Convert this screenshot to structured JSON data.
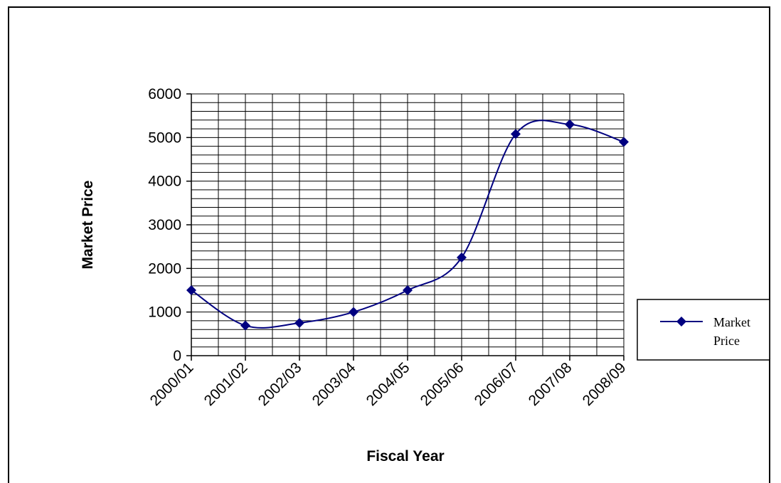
{
  "chart_data": {
    "type": "line",
    "xlabel": "Fiscal Year",
    "ylabel": "Market Price",
    "ylim": [
      0,
      6000
    ],
    "yticks": [
      0,
      1000,
      2000,
      3000,
      4000,
      5000,
      6000
    ],
    "categories": [
      "2000/01",
      "2001/02",
      "2002/03",
      "2003/04",
      "2004/05",
      "2005/06",
      "2006/07",
      "2007/08",
      "2008/09"
    ],
    "series": [
      {
        "name": "Market Price",
        "values": [
          1500,
          690,
          750,
          1000,
          1500,
          2250,
          5080,
          5300,
          4900
        ]
      }
    ],
    "smooth": true,
    "grid": true,
    "legend": "right",
    "colors": {
      "series": "#000080",
      "grid": "#000000"
    }
  },
  "legend": {
    "line1": "Market",
    "line2": "Price"
  }
}
